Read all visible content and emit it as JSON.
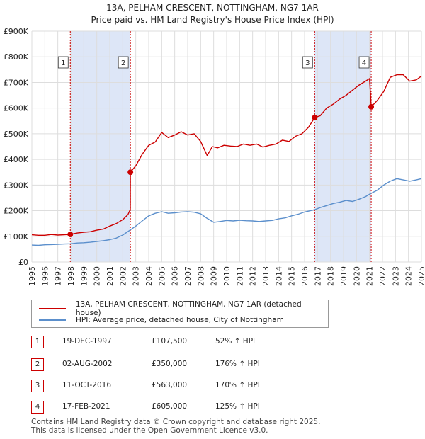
{
  "chart_data": {
    "type": "line",
    "title": "13A, PELHAM CRESCENT, NOTTINGHAM, NG7 1AR",
    "subtitle": "Price paid vs. HM Land Registry's House Price Index (HPI)",
    "xlim": [
      1995,
      2025
    ],
    "ylim": [
      0,
      900000
    ],
    "xticks": [
      "1995",
      "1996",
      "1997",
      "1998",
      "1999",
      "2000",
      "2001",
      "2002",
      "2003",
      "2004",
      "2005",
      "2006",
      "2007",
      "2008",
      "2009",
      "2010",
      "2011",
      "2012",
      "2013",
      "2014",
      "2015",
      "2016",
      "2017",
      "2018",
      "2019",
      "2020",
      "2021",
      "2022",
      "2023",
      "2024",
      "2025"
    ],
    "yticks": [
      {
        "value": 0,
        "label": "£0"
      },
      {
        "value": 100000,
        "label": "£100K"
      },
      {
        "value": 200000,
        "label": "£200K"
      },
      {
        "value": 300000,
        "label": "£300K"
      },
      {
        "value": 400000,
        "label": "£400K"
      },
      {
        "value": 500000,
        "label": "£500K"
      },
      {
        "value": 600000,
        "label": "£600K"
      },
      {
        "value": 700000,
        "label": "£700K"
      },
      {
        "value": 800000,
        "label": "£800K"
      },
      {
        "value": 900000,
        "label": "£900K"
      }
    ],
    "colors": {
      "property": "#cc0000",
      "hpi": "#5b8fcc",
      "shade": "#dde6f7",
      "grid": "#dddddd",
      "marker_line": "#cc0000"
    },
    "shaded_ranges": [
      [
        1997.96,
        2002.59
      ],
      [
        2016.78,
        2021.13
      ]
    ],
    "series": [
      {
        "name": "13A, PELHAM CRESCENT, NOTTINGHAM, NG7 1AR (detached house)",
        "x": [
          1995.0,
          1995.5,
          1996.0,
          1996.5,
          1997.0,
          1997.5,
          1997.96,
          1998.5,
          1999.0,
          1999.5,
          2000.0,
          2000.5,
          2001.0,
          2001.5,
          2002.0,
          2002.4,
          2002.58,
          2002.59,
          2003.0,
          2003.5,
          2004.0,
          2004.5,
          2005.0,
          2005.5,
          2006.0,
          2006.5,
          2007.0,
          2007.5,
          2008.0,
          2008.5,
          2008.9,
          2009.3,
          2009.8,
          2010.3,
          2010.8,
          2011.3,
          2011.8,
          2012.3,
          2012.8,
          2013.3,
          2013.8,
          2014.3,
          2014.8,
          2015.3,
          2015.8,
          2016.3,
          2016.78,
          2017.2,
          2017.7,
          2018.2,
          2018.7,
          2019.2,
          2019.7,
          2020.2,
          2020.7,
          2021.0,
          2021.13,
          2021.6,
          2022.1,
          2022.6,
          2023.1,
          2023.6,
          2024.1,
          2024.6,
          2025.0
        ],
        "y": [
          106000,
          104000,
          104000,
          107000,
          105000,
          106000,
          107500,
          113000,
          116000,
          118000,
          124000,
          128000,
          140000,
          150000,
          165000,
          185000,
          205000,
          350000,
          375000,
          420000,
          455000,
          468000,
          505000,
          485000,
          495000,
          508000,
          495000,
          500000,
          470000,
          415000,
          450000,
          445000,
          455000,
          452000,
          450000,
          460000,
          455000,
          460000,
          448000,
          455000,
          460000,
          475000,
          470000,
          490000,
          500000,
          525000,
          563000,
          570000,
          600000,
          615000,
          635000,
          650000,
          670000,
          690000,
          705000,
          715000,
          605000,
          630000,
          665000,
          720000,
          730000,
          730000,
          705000,
          710000,
          725000
        ]
      },
      {
        "name": "HPI: Average price, detached house, City of Nottingham",
        "x": [
          1995.0,
          1995.5,
          1996.0,
          1996.5,
          1997.0,
          1997.5,
          1997.96,
          1998.5,
          1999.0,
          1999.5,
          2000.0,
          2000.5,
          2001.0,
          2001.5,
          2002.0,
          2002.59,
          2003.0,
          2003.5,
          2004.0,
          2004.5,
          2005.0,
          2005.5,
          2006.0,
          2006.5,
          2007.0,
          2007.5,
          2008.0,
          2008.5,
          2009.0,
          2009.5,
          2010.0,
          2010.5,
          2011.0,
          2011.5,
          2012.0,
          2012.5,
          2013.0,
          2013.5,
          2014.0,
          2014.5,
          2015.0,
          2015.5,
          2016.0,
          2016.78,
          2017.2,
          2017.7,
          2018.2,
          2018.7,
          2019.2,
          2019.7,
          2020.2,
          2020.7,
          2021.13,
          2021.6,
          2022.1,
          2022.6,
          2023.1,
          2023.6,
          2024.1,
          2024.6,
          2025.0
        ],
        "y": [
          66000,
          65000,
          67000,
          68000,
          69000,
          70000,
          71000,
          74000,
          75000,
          77000,
          80000,
          83000,
          87000,
          93000,
          105000,
          125000,
          140000,
          160000,
          180000,
          190000,
          196000,
          190000,
          192000,
          195000,
          196000,
          194000,
          188000,
          170000,
          155000,
          158000,
          162000,
          160000,
          163000,
          161000,
          160000,
          158000,
          160000,
          162000,
          168000,
          172000,
          180000,
          186000,
          195000,
          204000,
          212000,
          220000,
          228000,
          233000,
          240000,
          236000,
          245000,
          255000,
          268000,
          280000,
          300000,
          315000,
          325000,
          320000,
          315000,
          320000,
          325000
        ]
      }
    ],
    "sales": [
      {
        "label": "1",
        "x": 1997.96,
        "y": 107500
      },
      {
        "label": "2",
        "x": 2002.59,
        "y": 350000
      },
      {
        "label": "3",
        "x": 2016.78,
        "y": 563000
      },
      {
        "label": "4",
        "x": 2021.13,
        "y": 605000
      }
    ]
  },
  "legend": {
    "property_label": "13A, PELHAM CRESCENT, NOTTINGHAM, NG7 1AR (detached house)",
    "hpi_label": "HPI: Average price, detached house, City of Nottingham"
  },
  "sales_table": [
    {
      "num": "1",
      "date": "19-DEC-1997",
      "price": "£107,500",
      "pct": "52% ↑ HPI"
    },
    {
      "num": "2",
      "date": "02-AUG-2002",
      "price": "£350,000",
      "pct": "176% ↑ HPI"
    },
    {
      "num": "3",
      "date": "11-OCT-2016",
      "price": "£563,000",
      "pct": "170% ↑ HPI"
    },
    {
      "num": "4",
      "date": "17-FEB-2021",
      "price": "£605,000",
      "pct": "125% ↑ HPI"
    }
  ],
  "footer": {
    "line1": "Contains HM Land Registry data © Crown copyright and database right 2025.",
    "line2": "This data is licensed under the Open Government Licence v3.0."
  }
}
